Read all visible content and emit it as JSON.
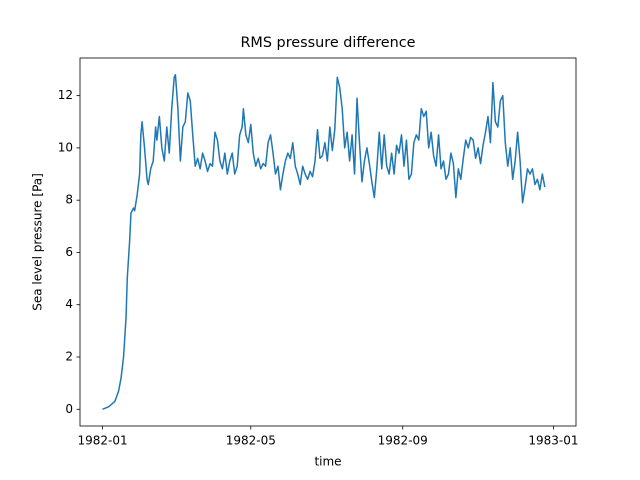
{
  "chart_data": {
    "type": "line",
    "title": "RMS pressure difference",
    "xlabel": "time",
    "ylabel": "Sea level pressure [Pa]",
    "x": [
      0,
      5,
      10,
      13,
      15,
      17,
      19,
      20,
      22,
      23,
      25,
      26,
      28,
      30,
      31,
      32,
      34,
      36,
      37,
      39,
      41,
      43,
      44,
      46,
      48,
      50,
      52,
      54,
      56,
      58,
      59,
      61,
      63,
      65,
      67,
      69,
      71,
      73,
      75,
      77,
      79,
      81,
      83,
      85,
      87,
      89,
      91,
      93,
      95,
      97,
      99,
      101,
      103,
      105,
      107,
      109,
      111,
      113,
      114,
      116,
      118,
      120,
      122,
      124,
      126,
      128,
      130,
      132,
      134,
      136,
      138,
      140,
      142,
      144,
      146,
      148,
      150,
      152,
      154,
      156,
      158,
      160,
      162,
      164,
      166,
      168,
      170,
      172,
      174,
      176,
      178,
      180,
      182,
      184,
      186,
      188,
      190,
      192,
      194,
      196,
      198,
      200,
      202,
      204,
      206,
      208,
      210,
      212,
      214,
      216,
      218,
      220,
      222,
      224,
      226,
      228,
      230,
      232,
      234,
      236,
      238,
      240,
      242,
      244,
      246,
      248,
      250,
      252,
      254,
      256,
      258,
      260,
      262,
      264,
      266,
      268,
      270,
      272,
      274,
      276,
      278,
      280,
      282,
      284,
      286,
      288,
      290,
      292,
      294,
      296,
      298,
      300,
      302,
      304,
      306,
      308,
      310,
      312,
      314,
      316,
      318,
      320,
      322,
      324,
      326,
      328,
      330,
      332,
      334,
      336,
      338,
      340,
      342,
      344,
      346,
      348,
      350,
      352,
      354,
      356,
      358
    ],
    "series": [
      {
        "name": "RMS",
        "color": "#1f77b4",
        "values": [
          0,
          0.1,
          0.3,
          0.7,
          1.2,
          2,
          3.5,
          5,
          6.5,
          7.5,
          7.7,
          7.6,
          8.2,
          9,
          10.5,
          11,
          10,
          8.8,
          8.6,
          9.2,
          9.5,
          10.8,
          10.3,
          11.2,
          10,
          9.5,
          10.8,
          9.8,
          11.5,
          12.7,
          12.8,
          11.5,
          9.5,
          10.8,
          11,
          12.1,
          11.8,
          10.5,
          9.3,
          9.6,
          9.2,
          9.8,
          9.5,
          9.1,
          9.4,
          9.3,
          10.6,
          10.3,
          9.5,
          9.2,
          9.8,
          9.0,
          9.5,
          9.8,
          9.0,
          9.3,
          10.5,
          10.8,
          11.5,
          10.5,
          10.2,
          10.9,
          9.8,
          9.3,
          9.6,
          9.2,
          9.4,
          9.3,
          10.2,
          10.5,
          9.8,
          9.0,
          9.3,
          8.4,
          9.0,
          9.5,
          9.8,
          9.6,
          10.2,
          9.3,
          9.0,
          8.6,
          9.3,
          9.0,
          8.8,
          9.1,
          8.9,
          9.5,
          10.7,
          9.6,
          9.7,
          10.2,
          9.5,
          10.8,
          9.9,
          10.7,
          12.7,
          12.3,
          11.5,
          10.0,
          10.6,
          9.5,
          10.5,
          9.0,
          11.9,
          10.2,
          8.7,
          9.5,
          10.0,
          9.4,
          8.7,
          8.1,
          9.2,
          10.6,
          9.2,
          10.5,
          9.3,
          9.0,
          9.8,
          9.0,
          10.1,
          9.8,
          10.5,
          9.3,
          10.3,
          8.8,
          9.0,
          10.2,
          10.5,
          10.3,
          11.5,
          11.2,
          11.4,
          10.0,
          10.6,
          9.7,
          9.3,
          10.5,
          9.2,
          9.5,
          8.8,
          9.0,
          9.8,
          9.4,
          8.1,
          9.2,
          8.8,
          9.6,
          10.3,
          10.0,
          10.4,
          10.3,
          9.6,
          10.0,
          9.4,
          10.1,
          10.6,
          11.2,
          10.2,
          12.5,
          11.0,
          10.8,
          11.8,
          12.0,
          10.2,
          9.3,
          10.0,
          8.8,
          9.5,
          10.6,
          9.5,
          7.9,
          8.5,
          9.2,
          9.0,
          9.2,
          8.6,
          8.8,
          8.4,
          9.0,
          8.5
        ]
      }
    ],
    "xlim": [
      -18.25,
      383.25
    ],
    "xticks": [
      {
        "value": 0,
        "label": "1982-01"
      },
      {
        "value": 120,
        "label": "1982-05"
      },
      {
        "value": 243,
        "label": "1982-09"
      },
      {
        "value": 365,
        "label": "1983-01"
      }
    ],
    "ylim": [
      -0.64,
      13.44
    ],
    "yticks": [
      0,
      2,
      4,
      6,
      8,
      10,
      12
    ],
    "grid": false
  }
}
